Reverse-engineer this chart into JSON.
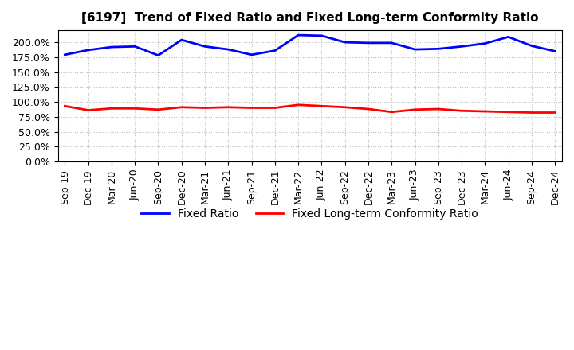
{
  "title": "[6197]  Trend of Fixed Ratio and Fixed Long-term Conformity Ratio",
  "x_labels": [
    "Sep-19",
    "Dec-19",
    "Mar-20",
    "Jun-20",
    "Sep-20",
    "Dec-20",
    "Mar-21",
    "Jun-21",
    "Sep-21",
    "Dec-21",
    "Mar-22",
    "Jun-22",
    "Sep-22",
    "Dec-22",
    "Mar-23",
    "Jun-23",
    "Sep-23",
    "Dec-23",
    "Mar-24",
    "Jun-24",
    "Sep-24",
    "Dec-24"
  ],
  "fixed_ratio": [
    179,
    187,
    192,
    193,
    178,
    204,
    193,
    188,
    179,
    186,
    212,
    211,
    200,
    199,
    199,
    188,
    189,
    193,
    198,
    209,
    194,
    185
  ],
  "fixed_longterm": [
    93,
    86,
    89,
    89,
    87,
    91,
    90,
    91,
    90,
    90,
    95,
    93,
    91,
    88,
    83,
    87,
    88,
    85,
    84,
    83,
    82,
    82
  ],
  "fixed_ratio_color": "#0000FF",
  "fixed_longterm_color": "#FF0000",
  "ylim": [
    0,
    220
  ],
  "yticks": [
    0,
    25,
    50,
    75,
    100,
    125,
    150,
    175,
    200
  ],
  "background_color": "#FFFFFF",
  "plot_bg_color": "#FFFFFF",
  "grid_color": "#BBBBBB",
  "legend_fixed_ratio": "Fixed Ratio",
  "legend_fixed_longterm": "Fixed Long-term Conformity Ratio",
  "line_width": 2.0,
  "title_fontsize": 11,
  "tick_fontsize": 9,
  "legend_fontsize": 10
}
